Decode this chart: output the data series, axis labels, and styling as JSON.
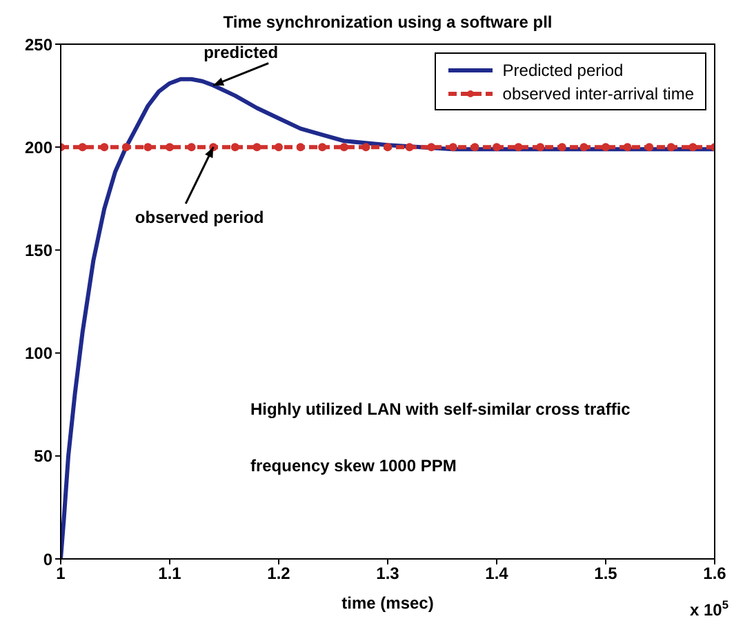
{
  "chart_data": {
    "type": "line",
    "title": "Time synchronization using a software pll",
    "xlabel": "time (msec)",
    "xlim": [
      1,
      1.6
    ],
    "xticks": [
      1,
      1.1,
      1.2,
      1.3,
      1.4,
      1.5,
      1.6
    ],
    "ylim": [
      0,
      250
    ],
    "yticks": [
      0,
      50,
      100,
      150,
      200,
      250
    ],
    "grid": false,
    "legend": "top right",
    "series": [
      {
        "name": "Predicted period",
        "color": "#1f2a8c",
        "marker": "none",
        "line_style": "solid",
        "x": [
          1,
          1.003,
          1.007,
          1.013,
          1.02,
          1.03,
          1.04,
          1.05,
          1.06,
          1.07,
          1.08,
          1.09,
          1.1,
          1.11,
          1.12,
          1.13,
          1.14,
          1.16,
          1.18,
          1.2,
          1.22,
          1.24,
          1.26,
          1.28,
          1.3,
          1.33,
          1.36,
          1.4,
          1.5,
          1.6
        ],
        "values": [
          0,
          20,
          50,
          80,
          110,
          145,
          170,
          188,
          200,
          210,
          220,
          227,
          231,
          233,
          233,
          232,
          230,
          225,
          219,
          214,
          209,
          206,
          203,
          202,
          201,
          200,
          199,
          199,
          199,
          199
        ]
      },
      {
        "name": "observed inter-arrival time",
        "color": "#d0312d",
        "marker": "circle",
        "line_style": "dashed",
        "x": [
          1,
          1.02,
          1.04,
          1.06,
          1.08,
          1.1,
          1.12,
          1.14,
          1.16,
          1.18,
          1.2,
          1.22,
          1.24,
          1.26,
          1.28,
          1.3,
          1.32,
          1.34,
          1.36,
          1.38,
          1.4,
          1.42,
          1.44,
          1.46,
          1.48,
          1.5,
          1.52,
          1.54,
          1.56,
          1.58,
          1.6
        ],
        "values": [
          200,
          200,
          200,
          200,
          200,
          200,
          200,
          200,
          200,
          200,
          200,
          200,
          200,
          200,
          200,
          200,
          200,
          200,
          200,
          200,
          200,
          200,
          200,
          200,
          200,
          200,
          200,
          200,
          200,
          200,
          200
        ]
      }
    ],
    "annotations": [
      {
        "text": "predicted",
        "x": 1.14,
        "y": 230
      },
      {
        "text": "observed period",
        "x": 1.14,
        "y": 200
      },
      "Highly utilized LAN with self-similar cross traffic",
      "frequency skew 1000 PPM",
      "x 10$^{5}$"
    ]
  }
}
